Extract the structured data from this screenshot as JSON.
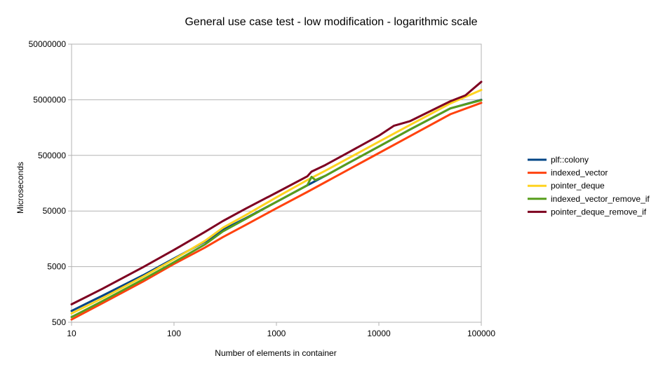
{
  "chart_data": {
    "type": "line",
    "title": "General use case test - low modification - logarithmic scale",
    "xlabel": "Number of elements in container",
    "ylabel": "Microseconds",
    "x_scale": "log",
    "y_scale": "log",
    "xlim": [
      10,
      100000
    ],
    "ylim": [
      500,
      50000000
    ],
    "x_ticks": [
      10,
      100,
      1000,
      10000,
      100000
    ],
    "x_tick_labels": [
      "10",
      "100",
      "1000",
      "10000",
      "100000"
    ],
    "y_ticks": [
      500,
      5000,
      50000,
      500000,
      5000000,
      50000000
    ],
    "y_tick_labels": [
      "500",
      "5000",
      "50000",
      "500000",
      "5000000",
      "50000000"
    ],
    "grid": "horizontal",
    "legend_position": "right",
    "series": [
      {
        "name": "plf::colony",
        "color": "#004586",
        "x": [
          10,
          20,
          50,
          100,
          200,
          300,
          500,
          1000,
          2000,
          3000,
          5000,
          10000,
          20000,
          50000,
          100000
        ],
        "y": [
          800,
          1500,
          3500,
          7000,
          14000,
          23000,
          37000,
          73000,
          145000,
          215000,
          360000,
          720000,
          1450000,
          3500000,
          5000000
        ]
      },
      {
        "name": "indexed_vector",
        "color": "#ff420e",
        "x": [
          10,
          20,
          50,
          100,
          200,
          300,
          500,
          1000,
          2000,
          3000,
          5000,
          10000,
          20000,
          50000,
          100000
        ],
        "y": [
          560,
          1100,
          2700,
          5600,
          11000,
          17000,
          28000,
          56000,
          110000,
          165000,
          275000,
          550000,
          1100000,
          2750000,
          4400000
        ]
      },
      {
        "name": "pointer_deque",
        "color": "#ffd320",
        "x": [
          10,
          20,
          50,
          100,
          200,
          300,
          500,
          1000,
          2000,
          3000,
          5000,
          10000,
          20000,
          50000,
          100000
        ],
        "y": [
          720,
          1350,
          3300,
          6800,
          14500,
          25000,
          42000,
          88000,
          180000,
          265000,
          440000,
          880000,
          1750000,
          4300000,
          7500000
        ]
      },
      {
        "name": "indexed_vector_remove_if",
        "color": "#579d1c",
        "x": [
          10,
          20,
          50,
          100,
          200,
          300,
          500,
          1000,
          2000,
          2200,
          2400,
          3000,
          5000,
          10000,
          20000,
          50000,
          100000
        ],
        "y": [
          620,
          1200,
          2950,
          6000,
          12500,
          21500,
          36000,
          73000,
          145000,
          205000,
          180000,
          215000,
          360000,
          720000,
          1450000,
          3500000,
          4900000
        ]
      },
      {
        "name": "pointer_deque_remove_if",
        "color": "#7e0021",
        "x": [
          10,
          20,
          50,
          100,
          200,
          300,
          500,
          1000,
          2000,
          2200,
          3000,
          5000,
          10000,
          14000,
          20000,
          50000,
          70000,
          100000
        ],
        "y": [
          1050,
          2000,
          4900,
          10000,
          21000,
          33000,
          55000,
          107000,
          210000,
          255000,
          335000,
          560000,
          1130000,
          1700000,
          2050000,
          4700000,
          6000000,
          10500000
        ]
      }
    ]
  }
}
